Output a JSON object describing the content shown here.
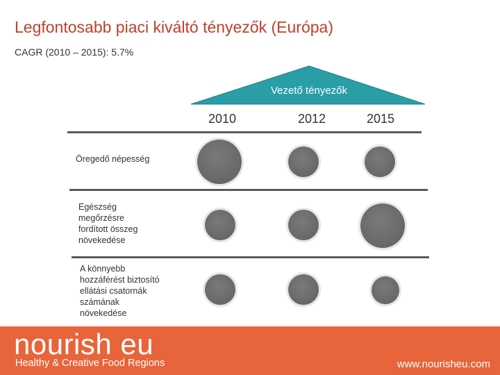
{
  "title": "Legfontosabb piaci kiváltó tényezők (Európa)",
  "subtitle": "CAGR (2010 – 2015): 5.7%",
  "drivers_header": "Vezető tényezők",
  "years": [
    "2010",
    "2012",
    "2015"
  ],
  "rows": [
    {
      "label": "Öregedő népesség"
    },
    {
      "label": "Egészség\nmegőrzésre\nfordított összeg\nnövekedése"
    },
    {
      "label": "A könnyebb\nhozzáférést biztosító\nellátási csatornák\nszámának\nnövekedése"
    }
  ],
  "colors": {
    "title": "#c0402a",
    "header_triangle": "#2a9ea6",
    "bubble": "#6d6d6d",
    "footer": "#e8643a"
  },
  "footer": {
    "brand": "nourish eu",
    "tagline": "Healthy & Creative Food Regions",
    "url": "www.nourisheu.com"
  }
}
